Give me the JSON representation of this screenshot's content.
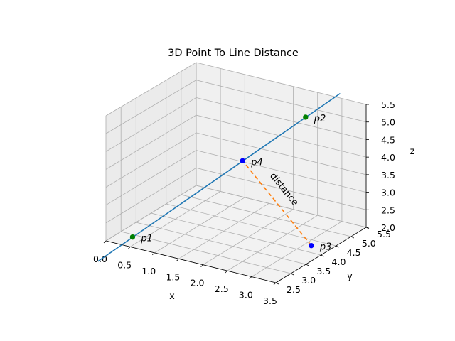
{
  "chart_data": {
    "type": "scatter",
    "projection": "3d",
    "title": "3D Point To Line Distance",
    "xlabel": "x",
    "ylabel": "y",
    "zlabel": "z",
    "xlim": [
      0.0,
      3.5
    ],
    "ylim": [
      2.5,
      5.5
    ],
    "zlim": [
      2.0,
      5.5
    ],
    "xticks": [
      "0.0",
      "0.5",
      "1.0",
      "1.5",
      "2.0",
      "2.5",
      "3.0",
      "3.5"
    ],
    "yticks": [
      "2.5",
      "3.0",
      "3.5",
      "4.0",
      "4.5",
      "5.0",
      "5.5"
    ],
    "zticks": [
      "2.0",
      "2.5",
      "3.0",
      "3.5",
      "4.0",
      "4.5",
      "5.0",
      "5.5"
    ],
    "grid": true,
    "points": [
      {
        "name": "p1",
        "label": "p1",
        "x": 0.3,
        "y": 2.9,
        "z": 2.0,
        "color": "#008000"
      },
      {
        "name": "p2",
        "label": "p2",
        "x": 2.5,
        "y": 5.1,
        "z": 5.0,
        "color": "#008000"
      },
      {
        "name": "p3",
        "label": "p3",
        "x": 3.3,
        "y": 4.0,
        "z": 2.2,
        "color": "#0000ff"
      },
      {
        "name": "p4",
        "label": "p4",
        "x": 1.7,
        "y": 4.3,
        "z": 3.9,
        "color": "#0000ff"
      }
    ],
    "series": [
      {
        "kind": "line",
        "from": "p1",
        "to": "p2",
        "extend": [
          -0.2,
          1.2
        ],
        "color": "#1f77b4",
        "style": "solid"
      },
      {
        "kind": "line",
        "from": "p3",
        "to": "p4",
        "color": "#ff7f0e",
        "style": "dashed"
      }
    ],
    "annotations": [
      {
        "text": "distance",
        "near": "p3-p4"
      }
    ],
    "colors": {
      "line": "#1f77b4",
      "distance": "#ff7f0e",
      "line_points": "#008000",
      "other_points": "#0000ff"
    }
  }
}
